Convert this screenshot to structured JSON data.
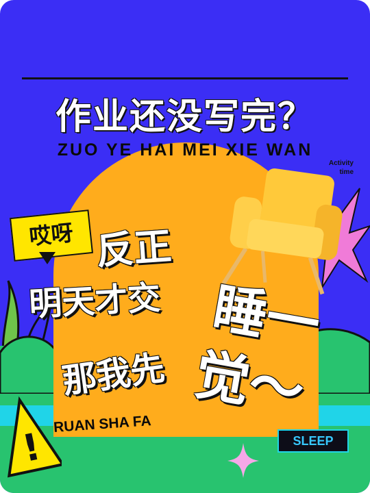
{
  "poster": {
    "title_zh": "作业还没写完？",
    "title_pinyin": "ZUO YE HAI MEI XIE WAN",
    "activity_line1": "Activity",
    "activity_line2": "time",
    "tag": "哎呀",
    "line_fanzheng": "反正",
    "line_mingtian": "明天才交",
    "line_nawoxian": "那我先",
    "line_shui": "睡一",
    "line_jiao": "觉～",
    "ruan_sha_fa": "RUAN SHA FA",
    "sleep_badge": "SLEEP"
  },
  "colors": {
    "background": "#3b2ef5",
    "arch": "#ffac1c",
    "hill": "#28c36f",
    "band": "#20d4e8",
    "tag": "#ffe600",
    "pink_star": "#f07bd8",
    "warning": "#ffe600"
  },
  "icons": [
    "armchair-icon",
    "warning-sign-icon",
    "sparkle-icon",
    "starburst-icon",
    "leaf-icon"
  ]
}
